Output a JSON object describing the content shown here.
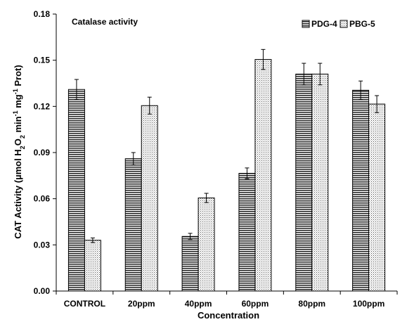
{
  "chart_data": {
    "type": "bar",
    "annotation": "Catalase activity",
    "categories": [
      "CONTROL",
      "20ppm",
      "40ppm",
      "60ppm",
      "80ppm",
      "100ppm"
    ],
    "series": [
      {
        "name": "PDG-4",
        "values": [
          0.131,
          0.086,
          0.0355,
          0.0765,
          0.141,
          0.1305
        ],
        "errors": [
          0.0065,
          0.004,
          0.002,
          0.0035,
          0.007,
          0.006
        ],
        "pattern": "horizontal-stripes"
      },
      {
        "name": "PBG-5",
        "values": [
          0.033,
          0.1205,
          0.0605,
          0.1505,
          0.141,
          0.1215
        ],
        "errors": [
          0.0015,
          0.0055,
          0.003,
          0.0065,
          0.007,
          0.0055
        ],
        "pattern": "dots"
      }
    ],
    "xlabel": "Concentration",
    "ylabel": {
      "prefix": "CAT Activity (µmol H",
      "sub": "2",
      "mid1": "O",
      "sub2": "2",
      "mid2": " min",
      "sup": "-1",
      "mid3": " mg",
      "sup2": "-1",
      "suffix": " Prot)"
    },
    "yticks": [
      "0.00",
      "0.03",
      "0.06",
      "0.09",
      "0.12",
      "0.15",
      "0.18"
    ],
    "ylim": [
      0,
      0.18
    ],
    "grid": false,
    "legend_position": "top-right"
  }
}
